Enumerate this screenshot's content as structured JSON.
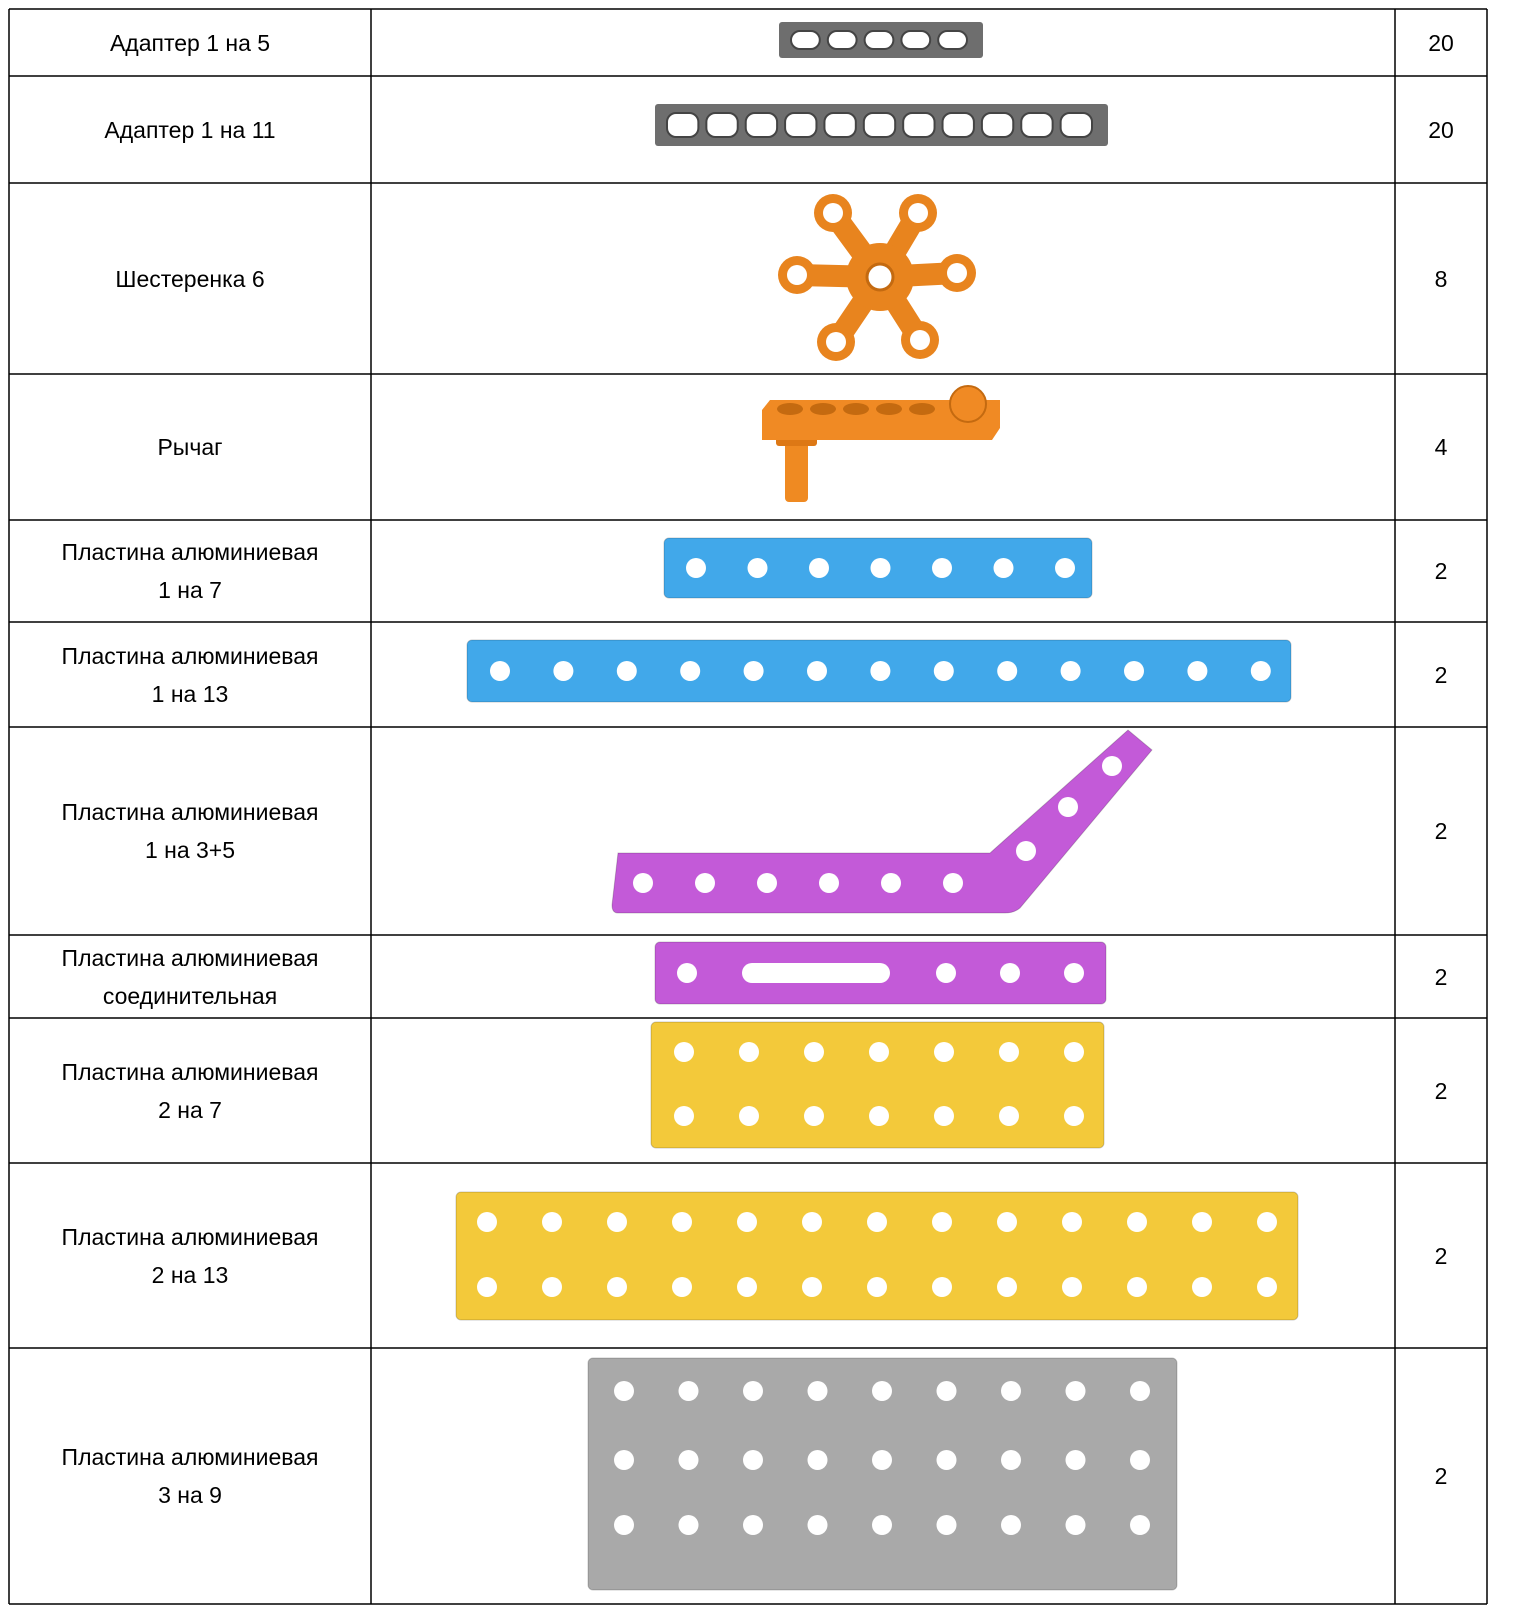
{
  "table": {
    "rows": [
      {
        "name": [
          "Адаптер 1 на 5"
        ],
        "quantity": 20
      },
      {
        "name": [
          "Адаптер 1 на 11"
        ],
        "quantity": 20
      },
      {
        "name": [
          "Шестеренка 6"
        ],
        "quantity": 8
      },
      {
        "name": [
          "Рычаг"
        ],
        "quantity": 4
      },
      {
        "name": [
          "Пластина алюминиевая",
          "1 на 7"
        ],
        "quantity": 2
      },
      {
        "name": [
          "Пластина алюминиевая",
          "1 на 13"
        ],
        "quantity": 2
      },
      {
        "name": [
          "Пластина алюминиевая",
          "1 на 3+5"
        ],
        "quantity": 2
      },
      {
        "name": [
          "Пластина алюминиевая",
          "соединительная"
        ],
        "quantity": 2
      },
      {
        "name": [
          "Пластина алюминиевая",
          "2 на 7"
        ],
        "quantity": 2
      },
      {
        "name": [
          "Пластина алюминиевая",
          "2 на 13"
        ],
        "quantity": 2
      },
      {
        "name": [
          "Пластина алюминиевая",
          "3 на 9"
        ],
        "quantity": 2
      }
    ]
  }
}
